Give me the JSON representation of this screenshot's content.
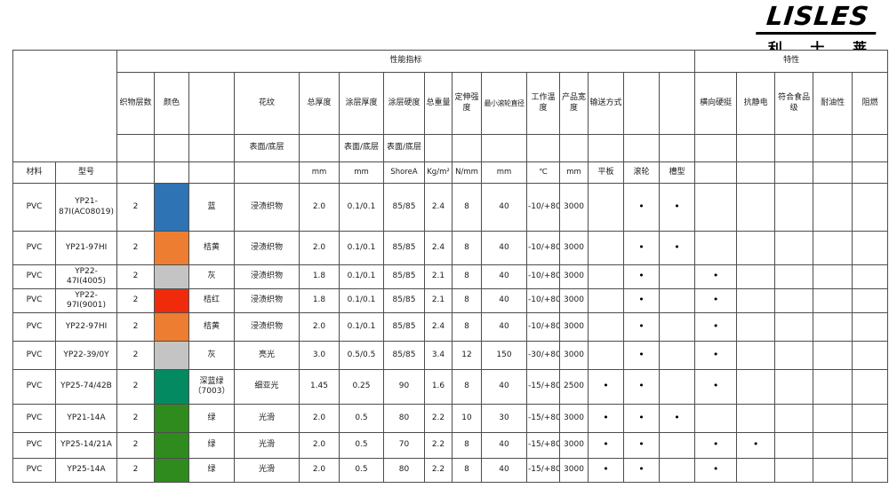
{
  "logo": {
    "brand": "LISLES",
    "name": "利 士 莱"
  },
  "table": {
    "group_headers": {
      "performance": "性能指标",
      "features": "特性"
    },
    "columns": {
      "material": "材料",
      "model": "型号",
      "plies": "织物层数",
      "color": "颜色",
      "pattern": "花纹",
      "total_thickness": "总厚度",
      "coating_thickness": "涂层厚度",
      "coating_hardness": "涂层硬度",
      "total_weight": "总重量",
      "tensile_strength": "定伸强度",
      "min_roller_dia": "最小滚轮直径",
      "working_temp": "工作温度",
      "product_width": "产品宽度",
      "conveying_method": "输送方式",
      "lateral_stiffness": "横向硬挺",
      "antistatic": "抗静电",
      "food_grade": "符合食品级",
      "oil_resistance": "耐油性",
      "flame_retardant": "阻燃"
    },
    "subheaders": {
      "surface_bottom": "表面/底层",
      "flat": "平板",
      "roller": "滚轮",
      "trough": "槽型"
    },
    "units": {
      "mm": "mm",
      "shore": "ShoreA",
      "kg_m2": "Kg/m²",
      "n_mm": "N/mm",
      "celsius": "℃"
    },
    "dot": "•",
    "rows": [
      {
        "material": "PVC",
        "model": "YP21-87I(AC08019)",
        "plies": "2",
        "swatch": "#2e74b5",
        "color_name": "蓝",
        "pattern": "浸渍织物",
        "total_thickness": "2.0",
        "coating_thickness": "0.1/0.1",
        "hardness": "85/85",
        "weight": "2.4",
        "tensile": "8",
        "min_roller": "40",
        "temp": "-10/+80",
        "width": "3000",
        "flat": false,
        "roller": true,
        "trough": true,
        "stiff": false,
        "antistatic": false,
        "food": false,
        "oil": false,
        "flame": false
      },
      {
        "material": "PVC",
        "model": "YP21-97HI",
        "plies": "2",
        "swatch": "#ed7d31",
        "color_name": "桔黄",
        "pattern": "浸渍织物",
        "total_thickness": "2.0",
        "coating_thickness": "0.1/0.1",
        "hardness": "85/85",
        "weight": "2.4",
        "tensile": "8",
        "min_roller": "40",
        "temp": "-10/+80",
        "width": "3000",
        "flat": false,
        "roller": true,
        "trough": true,
        "stiff": false,
        "antistatic": false,
        "food": false,
        "oil": false,
        "flame": false
      },
      {
        "material": "PVC",
        "model": "YP22-47I(4005)",
        "plies": "2",
        "swatch": "#c4c4c4",
        "color_name": "灰",
        "pattern": "浸渍织物",
        "total_thickness": "1.8",
        "coating_thickness": "0.1/0.1",
        "hardness": "85/85",
        "weight": "2.1",
        "tensile": "8",
        "min_roller": "40",
        "temp": "-10/+80",
        "width": "3000",
        "flat": false,
        "roller": true,
        "trough": false,
        "stiff": true,
        "antistatic": false,
        "food": false,
        "oil": false,
        "flame": false
      },
      {
        "material": "PVC",
        "model": "YP22-97I(9001)",
        "plies": "2",
        "swatch": "#f02b0c",
        "color_name": "桔红",
        "pattern": "浸渍织物",
        "total_thickness": "1.8",
        "coating_thickness": "0.1/0.1",
        "hardness": "85/85",
        "weight": "2.1",
        "tensile": "8",
        "min_roller": "40",
        "temp": "-10/+80",
        "width": "3000",
        "flat": false,
        "roller": true,
        "trough": false,
        "stiff": true,
        "antistatic": false,
        "food": false,
        "oil": false,
        "flame": false
      },
      {
        "material": "PVC",
        "model": "YP22-97HI",
        "plies": "2",
        "swatch": "#ed7d31",
        "color_name": "桔黄",
        "pattern": "浸渍织物",
        "total_thickness": "2.0",
        "coating_thickness": "0.1/0.1",
        "hardness": "85/85",
        "weight": "2.4",
        "tensile": "8",
        "min_roller": "40",
        "temp": "-10/+80",
        "width": "3000",
        "flat": false,
        "roller": true,
        "trough": false,
        "stiff": true,
        "antistatic": false,
        "food": false,
        "oil": false,
        "flame": false
      },
      {
        "material": "PVC",
        "model": "YP22-39/0Y",
        "plies": "2",
        "swatch": "#c4c4c4",
        "color_name": "灰",
        "pattern": "亮光",
        "total_thickness": "3.0",
        "coating_thickness": "0.5/0.5",
        "hardness": "85/85",
        "weight": "3.4",
        "tensile": "12",
        "min_roller": "150",
        "temp": "-30/+80",
        "width": "3000",
        "flat": false,
        "roller": true,
        "trough": false,
        "stiff": true,
        "antistatic": false,
        "food": false,
        "oil": false,
        "flame": false
      },
      {
        "material": "PVC",
        "model": "YP25-74/42B",
        "plies": "2",
        "swatch": "#048a60",
        "color_name": "深蓝绿（7003）",
        "pattern": "细亚光",
        "total_thickness": "1.45",
        "coating_thickness": "0.25",
        "hardness": "90",
        "weight": "1.6",
        "tensile": "8",
        "min_roller": "40",
        "temp": "-15/+80",
        "width": "2500",
        "flat": true,
        "roller": true,
        "trough": false,
        "stiff": true,
        "antistatic": false,
        "food": false,
        "oil": false,
        "flame": false
      },
      {
        "material": "PVC",
        "model": "YP21-14A",
        "plies": "2",
        "swatch": "#2f8b1e",
        "color_name": "绿",
        "pattern": "光滑",
        "total_thickness": "2.0",
        "coating_thickness": "0.5",
        "hardness": "80",
        "weight": "2.2",
        "tensile": "10",
        "min_roller": "30",
        "temp": "-15/+80",
        "width": "3000",
        "flat": true,
        "roller": true,
        "trough": true,
        "stiff": false,
        "antistatic": false,
        "food": false,
        "oil": false,
        "flame": false
      },
      {
        "material": "PVC",
        "model": "YP25-14/21A",
        "plies": "2",
        "swatch": "#2f8b1e",
        "color_name": "绿",
        "pattern": "光滑",
        "total_thickness": "2.0",
        "coating_thickness": "0.5",
        "hardness": "70",
        "weight": "2.2",
        "tensile": "8",
        "min_roller": "40",
        "temp": "-15/+80",
        "width": "3000",
        "flat": true,
        "roller": true,
        "trough": false,
        "stiff": true,
        "antistatic": true,
        "food": false,
        "oil": false,
        "flame": false
      },
      {
        "material": "PVC",
        "model": "YP25-14A",
        "plies": "2",
        "swatch": "#2f8b1e",
        "color_name": "绿",
        "pattern": "光滑",
        "total_thickness": "2.0",
        "coating_thickness": "0.5",
        "hardness": "80",
        "weight": "2.2",
        "tensile": "8",
        "min_roller": "40",
        "temp": "-15/+80",
        "width": "3000",
        "flat": true,
        "roller": true,
        "trough": false,
        "stiff": true,
        "antistatic": false,
        "food": false,
        "oil": false,
        "flame": false
      }
    ]
  }
}
